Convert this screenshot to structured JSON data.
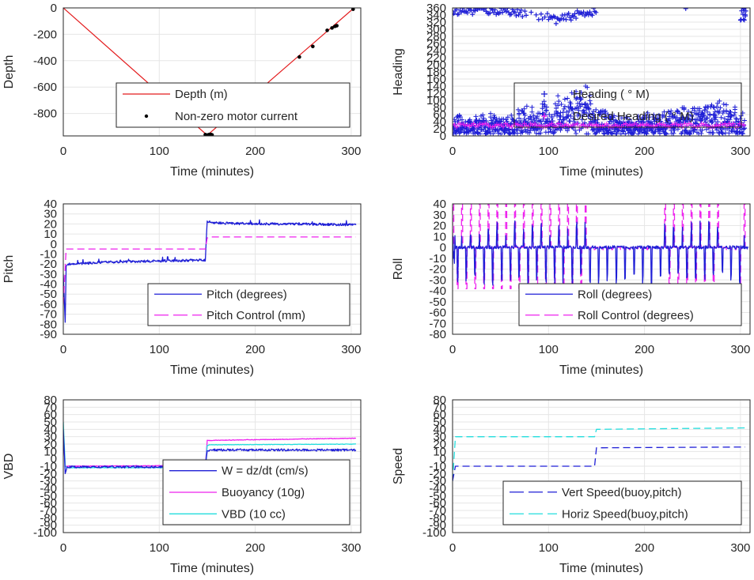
{
  "colors": {
    "red": "#e31a1c",
    "blue": "#1f1fd6",
    "magenta": "#ee22ee",
    "cyan": "#22dddd",
    "black": "#000000"
  },
  "chart_data": [
    {
      "id": "depth",
      "type": "line",
      "xlabel": "Time (minutes)",
      "ylabel": "Depth",
      "xlim": [
        0,
        310
      ],
      "ylim": [
        -970,
        0
      ],
      "xticks": [
        0,
        100,
        200,
        300
      ],
      "yticks": [
        0,
        -200,
        -400,
        -600,
        -800
      ],
      "series": [
        {
          "name": "Depth (m)",
          "style": "red-line",
          "x": [
            0,
            150,
            303
          ],
          "y": [
            0,
            -965,
            0
          ]
        },
        {
          "name": "Non-zero motor current",
          "style": "black-dots",
          "x": [
            148,
            149,
            150,
            151,
            152,
            153,
            154,
            155,
            246,
            260,
            275,
            280,
            283,
            285,
            302
          ],
          "y": [
            -960,
            -965,
            -965,
            -962,
            -960,
            -958,
            -960,
            -962,
            -372,
            -292,
            -170,
            -152,
            -140,
            -135,
            -10
          ]
        }
      ]
    },
    {
      "id": "heading",
      "type": "scatter",
      "xlabel": "Time (minutes)",
      "ylabel": "Heading",
      "xlim": [
        0,
        310
      ],
      "ylim": [
        0,
        360
      ],
      "xticks": [
        0,
        100,
        200,
        300
      ],
      "yticks": [
        0,
        20,
        40,
        60,
        80,
        100,
        120,
        140,
        160,
        180,
        200,
        220,
        240,
        260,
        280,
        300,
        320,
        340,
        360
      ],
      "series": [
        {
          "name": "Heading ( ° M)",
          "style": "blue-plus",
          "band_low_x": [
            0,
            60,
            100,
            150,
            200,
            250,
            305
          ],
          "band_low_y": [
            5,
            5,
            5,
            5,
            5,
            5,
            5
          ],
          "band_high_x": [
            0,
            50,
            90,
            140,
            170,
            230,
            280,
            305
          ],
          "band_high_y": [
            60,
            70,
            100,
            150,
            60,
            80,
            110,
            70
          ],
          "top_x": [
            0,
            10,
            20,
            30,
            40,
            55,
            70,
            100,
            110,
            120,
            135,
            145,
            300,
            305
          ],
          "top_y": [
            340,
            350,
            345,
            355,
            345,
            350,
            340,
            330,
            320,
            330,
            340,
            345,
            340,
            330
          ]
        },
        {
          "name": "Desired Heading ( ° M)",
          "style": "magenta-plus",
          "x": [
            0,
            310
          ],
          "y": [
            30,
            30
          ]
        }
      ]
    },
    {
      "id": "pitch",
      "type": "line",
      "xlabel": "Time (minutes)",
      "ylabel": "Pitch",
      "xlim": [
        0,
        310
      ],
      "ylim": [
        -90,
        40
      ],
      "xticks": [
        0,
        100,
        200,
        300
      ],
      "yticks": [
        40,
        30,
        20,
        10,
        0,
        -10,
        -20,
        -30,
        -40,
        -50,
        -60,
        -70,
        -80,
        -90
      ],
      "series": [
        {
          "name": "Pitch (degrees)",
          "style": "blue-line",
          "x": [
            0,
            2,
            3,
            5,
            50,
            100,
            148,
            150,
            152,
            160,
            200,
            250,
            305
          ],
          "y": [
            -30,
            -78,
            -22,
            -20,
            -18,
            -17,
            -16,
            23,
            22,
            21,
            20,
            20,
            19
          ]
        },
        {
          "name": "Pitch Control (mm)",
          "style": "magenta-dash",
          "x": [
            0,
            3,
            5,
            148,
            150,
            152,
            305
          ],
          "y": [
            -60,
            -5,
            -5,
            -5,
            6,
            7,
            7
          ]
        }
      ]
    },
    {
      "id": "roll",
      "type": "line",
      "xlabel": "Time (minutes)",
      "ylabel": "Roll",
      "xlim": [
        0,
        310
      ],
      "ylim": [
        -80,
        40
      ],
      "xticks": [
        0,
        100,
        200,
        300
      ],
      "yticks": [
        40,
        30,
        20,
        10,
        0,
        -10,
        -20,
        -30,
        -40,
        -50,
        -60,
        -70,
        -80
      ],
      "series": [
        {
          "name": "Roll (degrees)",
          "style": "blue-line",
          "baseline": 0,
          "dip": -35
        },
        {
          "name": "Roll Control (degrees)",
          "style": "magenta-dash",
          "amplitude": 40
        }
      ]
    },
    {
      "id": "vbd",
      "type": "line",
      "xlabel": "Time (minutes)",
      "ylabel": "VBD",
      "xlim": [
        0,
        310
      ],
      "ylim": [
        -100,
        80
      ],
      "xticks": [
        0,
        100,
        200,
        300
      ],
      "yticks": [
        80,
        70,
        60,
        50,
        40,
        30,
        20,
        10,
        0,
        -10,
        -20,
        -30,
        -40,
        -50,
        -60,
        -70,
        -80,
        -90,
        -100
      ],
      "series": [
        {
          "name": "W = dz/dt (cm/s)",
          "style": "blue-line",
          "x": [
            0,
            2,
            4,
            148,
            150,
            152,
            305
          ],
          "y": [
            40,
            -20,
            -11,
            -11,
            10,
            12,
            12
          ]
        },
        {
          "name": "Buoyancy (10g)",
          "style": "magenta-line",
          "x": [
            0,
            2,
            4,
            148,
            150,
            152,
            305
          ],
          "y": [
            30,
            -10,
            -10,
            -9,
            25,
            25,
            28
          ]
        },
        {
          "name": "VBD (10 cc)",
          "style": "cyan-line",
          "x": [
            0,
            2,
            4,
            148,
            150,
            152,
            305
          ],
          "y": [
            50,
            -10,
            -12,
            -12,
            18,
            19,
            20
          ]
        }
      ]
    },
    {
      "id": "speed",
      "type": "line",
      "xlabel": "Time (minutes)",
      "ylabel": "Speed",
      "xlim": [
        0,
        310
      ],
      "ylim": [
        -100,
        80
      ],
      "xticks": [
        0,
        100,
        200,
        300
      ],
      "yticks": [
        80,
        70,
        60,
        50,
        40,
        30,
        20,
        10,
        0,
        -10,
        -20,
        -30,
        -40,
        -50,
        -60,
        -70,
        -80,
        -90,
        -100
      ],
      "series": [
        {
          "name": "Vert Speed(buoy,pitch)",
          "style": "blue-dash",
          "x": [
            0,
            3,
            5,
            148,
            150,
            152,
            305
          ],
          "y": [
            -30,
            -10,
            -10,
            -10,
            15,
            15,
            16
          ]
        },
        {
          "name": "Horiz Speed(buoy,pitch)",
          "style": "cyan-dash",
          "x": [
            0,
            3,
            5,
            148,
            150,
            152,
            305
          ],
          "y": [
            -30,
            30,
            30,
            30,
            40,
            40,
            42
          ]
        }
      ]
    }
  ]
}
